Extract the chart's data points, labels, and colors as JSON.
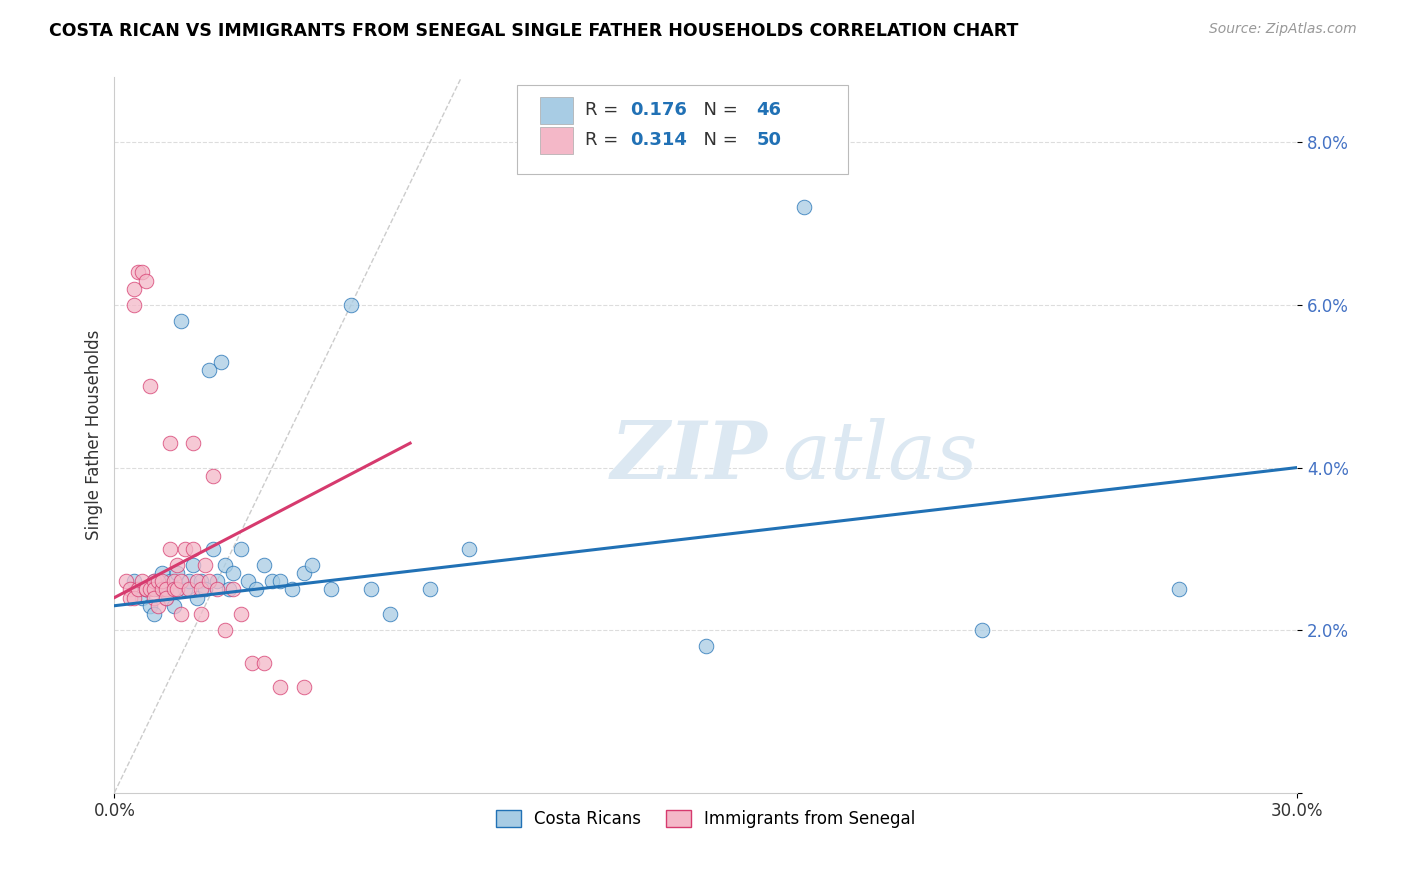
{
  "title": "COSTA RICAN VS IMMIGRANTS FROM SENEGAL SINGLE FATHER HOUSEHOLDS CORRELATION CHART",
  "source": "Source: ZipAtlas.com",
  "ylabel": "Single Father Households",
  "yticks": [
    0.0,
    0.02,
    0.04,
    0.06,
    0.08
  ],
  "ytick_labels": [
    "",
    "2.0%",
    "4.0%",
    "6.0%",
    "8.0%"
  ],
  "xlim": [
    0.0,
    0.3
  ],
  "ylim": [
    0.0,
    0.088
  ],
  "color_blue": "#a8cce4",
  "color_pink": "#f4b8c8",
  "color_blue_dark": "#2171b5",
  "color_pink_dark": "#d63a6e",
  "watermark_zip": "ZIP",
  "watermark_atlas": "atlas",
  "legend_label1": "Costa Ricans",
  "legend_label2": "Immigrants from Senegal",
  "blue_scatter_x": [
    0.005,
    0.007,
    0.008,
    0.009,
    0.01,
    0.01,
    0.011,
    0.012,
    0.013,
    0.014,
    0.015,
    0.015,
    0.016,
    0.017,
    0.018,
    0.019,
    0.02,
    0.021,
    0.022,
    0.023,
    0.024,
    0.025,
    0.026,
    0.027,
    0.028,
    0.029,
    0.03,
    0.032,
    0.034,
    0.036,
    0.038,
    0.04,
    0.042,
    0.045,
    0.048,
    0.05,
    0.055,
    0.06,
    0.065,
    0.07,
    0.08,
    0.09,
    0.15,
    0.175,
    0.22,
    0.27
  ],
  "blue_scatter_y": [
    0.026,
    0.024,
    0.025,
    0.023,
    0.026,
    0.022,
    0.025,
    0.027,
    0.024,
    0.026,
    0.025,
    0.023,
    0.027,
    0.058,
    0.025,
    0.026,
    0.028,
    0.024,
    0.026,
    0.025,
    0.052,
    0.03,
    0.026,
    0.053,
    0.028,
    0.025,
    0.027,
    0.03,
    0.026,
    0.025,
    0.028,
    0.026,
    0.026,
    0.025,
    0.027,
    0.028,
    0.025,
    0.06,
    0.025,
    0.022,
    0.025,
    0.03,
    0.018,
    0.072,
    0.02,
    0.025
  ],
  "pink_scatter_x": [
    0.003,
    0.004,
    0.004,
    0.005,
    0.005,
    0.005,
    0.006,
    0.006,
    0.007,
    0.007,
    0.008,
    0.008,
    0.008,
    0.009,
    0.009,
    0.01,
    0.01,
    0.01,
    0.011,
    0.011,
    0.012,
    0.012,
    0.013,
    0.013,
    0.014,
    0.014,
    0.015,
    0.015,
    0.016,
    0.016,
    0.017,
    0.017,
    0.018,
    0.019,
    0.02,
    0.02,
    0.021,
    0.022,
    0.022,
    0.023,
    0.024,
    0.025,
    0.026,
    0.028,
    0.03,
    0.032,
    0.035,
    0.038,
    0.042,
    0.048
  ],
  "pink_scatter_y": [
    0.026,
    0.025,
    0.024,
    0.06,
    0.062,
    0.024,
    0.064,
    0.025,
    0.064,
    0.026,
    0.025,
    0.063,
    0.025,
    0.025,
    0.05,
    0.026,
    0.025,
    0.024,
    0.026,
    0.023,
    0.025,
    0.026,
    0.025,
    0.024,
    0.043,
    0.03,
    0.026,
    0.025,
    0.028,
    0.025,
    0.026,
    0.022,
    0.03,
    0.025,
    0.043,
    0.03,
    0.026,
    0.025,
    0.022,
    0.028,
    0.026,
    0.039,
    0.025,
    0.02,
    0.025,
    0.022,
    0.016,
    0.016,
    0.013,
    0.013
  ]
}
